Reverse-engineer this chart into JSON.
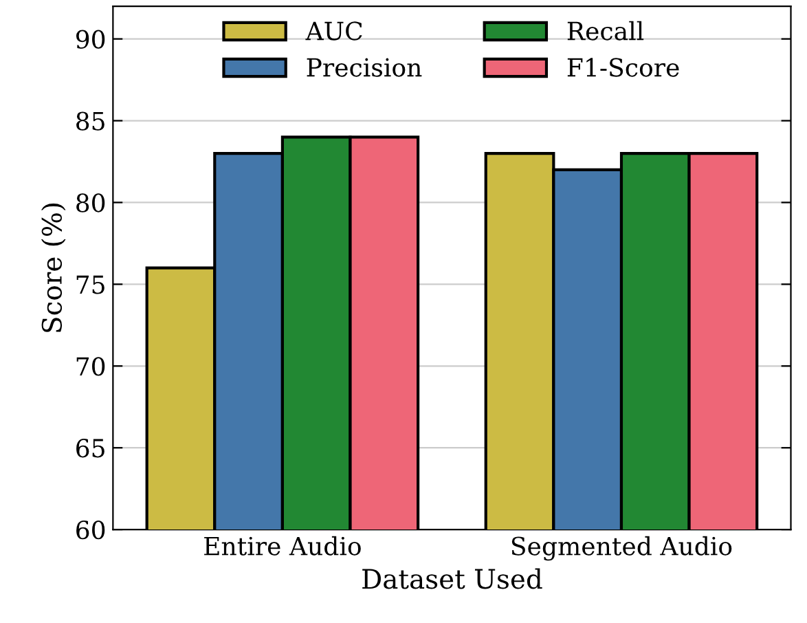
{
  "chart_data": {
    "type": "bar",
    "xlabel": "Dataset Used",
    "ylabel": "Score (%)",
    "categories": [
      "Entire Audio",
      "Segmented Audio"
    ],
    "series": [
      {
        "name": "AUC",
        "color": "#ccbb44",
        "values": [
          76,
          83
        ]
      },
      {
        "name": "Precision",
        "color": "#4477aa",
        "values": [
          83,
          82
        ]
      },
      {
        "name": "Recall",
        "color": "#228833",
        "values": [
          84,
          83
        ]
      },
      {
        "name": "F1-Score",
        "color": "#ee6677",
        "values": [
          84,
          83
        ]
      }
    ],
    "ylim": [
      60,
      92
    ],
    "yticks": [
      60,
      65,
      70,
      75,
      80,
      85,
      90
    ],
    "grid": "y",
    "legend": "top"
  }
}
